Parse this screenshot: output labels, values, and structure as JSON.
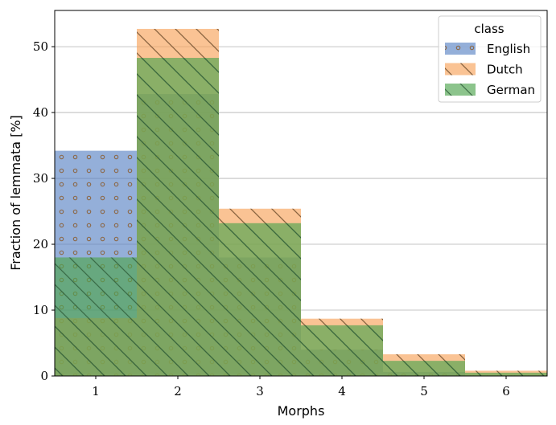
{
  "chart_data": {
    "type": "bar",
    "categories": [
      "1",
      "2",
      "3",
      "4",
      "5",
      "6"
    ],
    "xlabel": "Morphs",
    "ylabel": "Fraction of lemmata [%]",
    "ylim": [
      0,
      55.5
    ],
    "yticks": [
      0,
      10,
      20,
      30,
      40,
      50
    ],
    "grid": "horizontal",
    "legend": {
      "title": "class",
      "placement": "top-right"
    },
    "series": [
      {
        "name": "English",
        "color": "#5b84c4",
        "hatch": "dots",
        "values": [
          34.2,
          42.8,
          18.0,
          4.0,
          0.6,
          0.1
        ]
      },
      {
        "name": "Dutch",
        "color": "#f7a35b",
        "hatch": "backslash",
        "values": [
          8.8,
          52.7,
          25.4,
          8.7,
          3.3,
          0.8
        ]
      },
      {
        "name": "German",
        "color": "#4ea54e",
        "hatch": "slash-backslash",
        "values": [
          18.0,
          48.3,
          23.2,
          7.7,
          2.3,
          0.5
        ]
      }
    ]
  }
}
